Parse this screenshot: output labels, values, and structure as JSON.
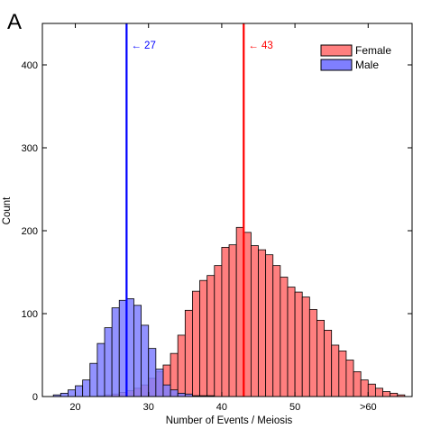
{
  "panel_label": "A",
  "chart_data": {
    "type": "bar",
    "subtype": "overlaid-histogram",
    "title": "",
    "xlabel": "Number of Events / Meiosis",
    "ylabel": "Count",
    "xlim": [
      15.5,
      66
    ],
    "ylim": [
      0,
      450
    ],
    "x_ticks": [
      20,
      30,
      40,
      50,
      60
    ],
    "x_tick_labels": [
      "20",
      "30",
      "40",
      "50",
      ">60"
    ],
    "y_ticks": [
      0,
      100,
      200,
      300,
      400
    ],
    "bin_width": 1,
    "grid": false,
    "legend": {
      "position": "top-right",
      "entries": [
        {
          "label": "Female",
          "color": "#ff7f7f"
        },
        {
          "label": "Male",
          "color": "#7f7fff"
        }
      ]
    },
    "series": [
      {
        "name": "Female",
        "color": "#ff7f7f",
        "bin_starts": [
          23,
          24,
          25,
          26,
          27,
          28,
          29,
          30,
          31,
          32,
          33,
          34,
          35,
          36,
          37,
          38,
          39,
          40,
          41,
          42,
          43,
          44,
          45,
          46,
          47,
          48,
          49,
          50,
          51,
          52,
          53,
          54,
          55,
          56,
          57,
          58,
          59,
          60,
          61,
          62,
          63,
          64
        ],
        "counts": [
          1,
          2,
          3,
          5,
          7,
          10,
          14,
          22,
          30,
          38,
          52,
          74,
          104,
          127,
          140,
          146,
          158,
          180,
          183,
          204,
          198,
          182,
          177,
          171,
          158,
          144,
          132,
          126,
          120,
          105,
          92,
          80,
          62,
          55,
          44,
          30,
          20,
          15,
          10,
          6,
          4,
          2
        ]
      },
      {
        "name": "Male",
        "color": "#7f7fff",
        "bin_starts": [
          17,
          18,
          19,
          20,
          21,
          22,
          23,
          24,
          25,
          26,
          27,
          28,
          29,
          30,
          31,
          32,
          33,
          34,
          35,
          36,
          37,
          38
        ],
        "counts": [
          2,
          4,
          8,
          13,
          20,
          40,
          64,
          83,
          107,
          116,
          118,
          110,
          86,
          58,
          33,
          14,
          8,
          4,
          3,
          1,
          1,
          1
        ]
      }
    ],
    "markers": [
      {
        "x": 27,
        "label": "27",
        "color": "#0000ff"
      },
      {
        "x": 43,
        "label": "43",
        "color": "#ff0000"
      }
    ]
  }
}
